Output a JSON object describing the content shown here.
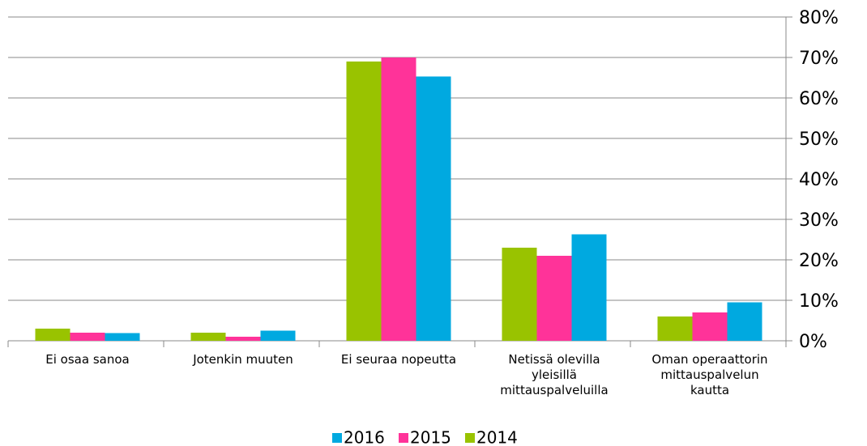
{
  "chart_data": {
    "type": "bar",
    "categories": [
      "Ei osaa sanoa",
      "Jotenkin muuten",
      "Ei seuraa nopeutta",
      "Netissä olevilla\nyleisillä\nmittauspalveluilla",
      "Oman operaattorin\nmittauspalvelun\nkautta"
    ],
    "series": [
      {
        "name": "2016",
        "color": "#00a9e0",
        "values": [
          1.9,
          2.5,
          65.3,
          26.3,
          9.5
        ]
      },
      {
        "name": "2015",
        "color": "#ff3399",
        "values": [
          2,
          1,
          70,
          21,
          7
        ]
      },
      {
        "name": "2014",
        "color": "#99c300",
        "values": [
          3,
          2,
          69,
          23,
          6
        ]
      }
    ],
    "ylim": [
      0,
      80
    ],
    "yticks": [
      {
        "value": 0,
        "label": "0%"
      },
      {
        "value": 10,
        "label": "10%"
      },
      {
        "value": 20,
        "label": "20%"
      },
      {
        "value": 30,
        "label": "30%"
      },
      {
        "value": 40,
        "label": "40%"
      },
      {
        "value": 50,
        "label": "50%"
      },
      {
        "value": 60,
        "label": "60%"
      },
      {
        "value": 70,
        "label": "70%"
      },
      {
        "value": 80,
        "label": "80%"
      }
    ],
    "grid": true,
    "legend": "bottom"
  }
}
